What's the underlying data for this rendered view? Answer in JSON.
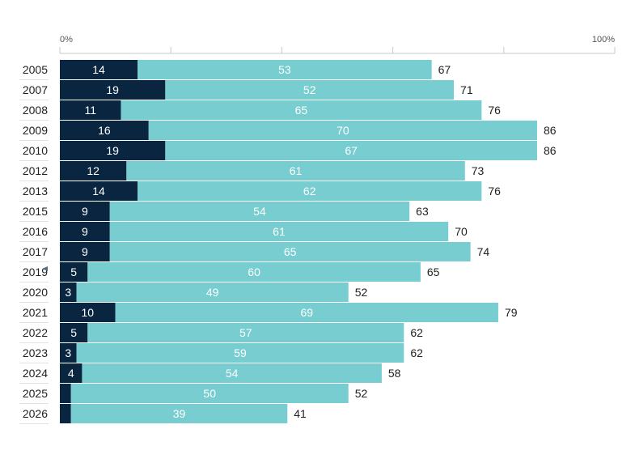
{
  "chart_data": {
    "type": "bar",
    "orientation": "horizontal",
    "stacked": true,
    "categories": [
      "2005",
      "2007",
      "2008",
      "2009",
      "2010",
      "2012",
      "2013",
      "2015",
      "2016",
      "2017",
      "2019",
      "2020",
      "2021",
      "2022",
      "2023",
      "2024",
      "2025",
      "2026"
    ],
    "series": [
      {
        "values": [
          14,
          19,
          11,
          16,
          19,
          12,
          14,
          9,
          9,
          9,
          5,
          3,
          10,
          5,
          3,
          4,
          2,
          2
        ],
        "labels": [
          "14",
          "19",
          "11",
          "16",
          "19",
          "12",
          "14",
          "9",
          "9",
          "9",
          "5",
          "3",
          "10",
          "5",
          "3",
          "4",
          "",
          ""
        ],
        "color": "#0a2540"
      },
      {
        "values": [
          53,
          52,
          65,
          70,
          67,
          61,
          62,
          54,
          61,
          65,
          60,
          49,
          69,
          57,
          59,
          54,
          50,
          39
        ],
        "labels": [
          "53",
          "52",
          "65",
          "70",
          "67",
          "61",
          "62",
          "54",
          "61",
          "65",
          "60",
          "49",
          "69",
          "57",
          "59",
          "54",
          "50",
          "39"
        ],
        "color": "#77cdd0"
      }
    ],
    "totals": [
      "67",
      "71",
      "76",
      "86",
      "86",
      "73",
      "76",
      "63",
      "70",
      "74",
      "65",
      "52",
      "79",
      "62",
      "62",
      "58",
      "52",
      "41"
    ],
    "xlim": [
      0,
      100
    ],
    "x_ticks": [
      {
        "value": 0,
        "label": "0%"
      },
      {
        "value": 20,
        "label": ""
      },
      {
        "value": 40,
        "label": ""
      },
      {
        "value": 60,
        "label": ""
      },
      {
        "value": 80,
        "label": ""
      },
      {
        "value": 100,
        "label": "100%"
      }
    ],
    "marker_category": "2019",
    "colors": {
      "dark": "#0a2540",
      "light": "#77cdd0",
      "axis": "#c8c8c8"
    }
  }
}
